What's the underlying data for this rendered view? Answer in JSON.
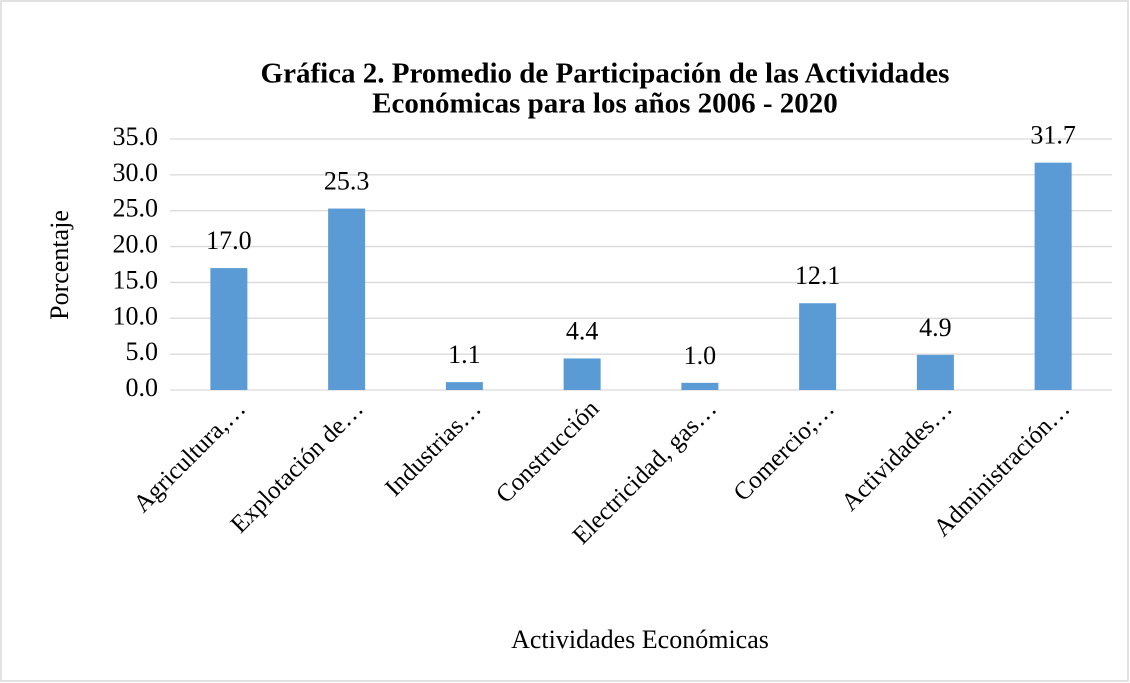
{
  "chart_data": {
    "type": "bar",
    "title": [
      "Gráfica 2. Promedio de Participación de las Actividades",
      "Económicas para los años 2006 - 2020"
    ],
    "y_axis_label": "Porcentaje",
    "x_axis_label": "Actividades Económicas",
    "categories": [
      "Agricultura,…",
      "Explotación de…",
      "Industrias…",
      "Construcción",
      "Electricidad, gas…",
      "Comercio;…",
      "Actividades…",
      "Administración…"
    ],
    "values": [
      17.0,
      25.3,
      1.1,
      4.4,
      1.0,
      12.1,
      4.9,
      31.7
    ],
    "value_labels": [
      "17.0",
      "25.3",
      "1.1",
      "4.4",
      "1.0",
      "12.1",
      "4.9",
      "31.7"
    ],
    "color": "#5b9bd5",
    "ylim": [
      0,
      35
    ],
    "yticks": [
      {
        "value": 0,
        "label": "0.0"
      },
      {
        "value": 5,
        "label": "5.0"
      },
      {
        "value": 10,
        "label": "10.0"
      },
      {
        "value": 15,
        "label": "15.0"
      },
      {
        "value": 20,
        "label": "20.0"
      },
      {
        "value": 25,
        "label": "25.0"
      },
      {
        "value": 30,
        "label": "30.0"
      },
      {
        "value": 35,
        "label": "35.0"
      }
    ],
    "grid": true
  }
}
